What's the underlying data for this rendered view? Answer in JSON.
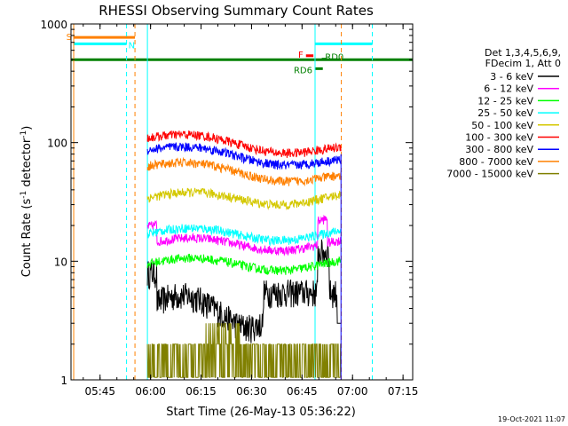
{
  "chart_data": {
    "type": "line",
    "title": "RHESSI Observing Summary Count Rates",
    "xlabel": "Start Time (26-May-13 05:36:22)",
    "ylabel_main": "Count Rate (s",
    "ylabel_sup1": "-1",
    "ylabel_mid": " detector",
    "ylabel_sup2": "-1",
    "ylabel_end": ")",
    "x_range_minutes": [
      0,
      101.5
    ],
    "x_ticks": [
      {
        "label": "05:45",
        "min": 8.6333
      },
      {
        "label": "06:00",
        "min": 23.6333
      },
      {
        "label": "06:15",
        "min": 38.6333
      },
      {
        "label": "06:30",
        "min": 53.6333
      },
      {
        "label": "06:45",
        "min": 68.6333
      },
      {
        "label": "07:00",
        "min": 83.6333
      },
      {
        "label": "07:15",
        "min": 98.6333
      }
    ],
    "y_scale": "log",
    "y_range": [
      1,
      1000
    ],
    "y_ticks": [
      {
        "label": "1",
        "value": 1
      },
      {
        "label": "10",
        "value": 10
      },
      {
        "label": "100",
        "value": 100
      },
      {
        "label": "1000",
        "value": 1000
      }
    ],
    "legend_header": [
      "Det 1,3,4,5,6,9,",
      "FDecim 1, Att 0"
    ],
    "data_window_minutes": [
      22.7,
      80.2
    ],
    "series": [
      {
        "name": "3 - 6 keV",
        "color": "#000000",
        "level": 4.8
      },
      {
        "name": "6 - 12 keV",
        "color": "#ff00ff",
        "level": 14
      },
      {
        "name": "12 - 25 keV",
        "color": "#00ff00",
        "level": 9.5
      },
      {
        "name": "25 - 50 keV",
        "color": "#00ffff",
        "level": 17
      },
      {
        "name": "50 - 100 keV",
        "color": "#d4c800",
        "level": 34
      },
      {
        "name": "100 - 300 keV",
        "color": "#ff0000",
        "level": 95
      },
      {
        "name": "300 - 800 keV",
        "color": "#0000ff",
        "level": 75
      },
      {
        "name": "800 - 7000 keV",
        "color": "#ff8000",
        "level": 55
      },
      {
        "name": "7000 - 15000 keV",
        "color": "#808000",
        "level": 2
      }
    ],
    "flags": [
      {
        "label": "S",
        "color": "#ff8000",
        "value": 770,
        "x_start": 0.8,
        "x_end": 19.0
      },
      {
        "label": "N",
        "color": "#00ffff",
        "value": 680,
        "x_start": 0.8,
        "x_end": 16.5
      },
      {
        "label": "",
        "color": "#00ffff",
        "value": 680,
        "x_start": 72.5,
        "x_end": 89.5
      },
      {
        "label": "F",
        "color": "#ff0000",
        "value": 540,
        "x_start": 69.8,
        "x_end": 72.0
      },
      {
        "label": "RD0",
        "color": "#008000",
        "value": 505,
        "x_start": 74.5,
        "x_end": 76.0
      },
      {
        "label": "RD6",
        "color": "#008000",
        "value": 420,
        "x_start": 72.5,
        "x_end": 74.8
      },
      {
        "label": "",
        "color": "#008000",
        "value": 500,
        "x_start": 0.0,
        "x_end": 101.5
      }
    ],
    "vlines": [
      {
        "min": 0.8,
        "color": "#ff8000",
        "style": "solid"
      },
      {
        "min": 16.5,
        "color": "#00ffff",
        "style": "dashed"
      },
      {
        "min": 19.0,
        "color": "#ff8000",
        "style": "dashed"
      },
      {
        "min": 22.7,
        "color": "#00ffff",
        "style": "solid"
      },
      {
        "min": 72.5,
        "color": "#00ffff",
        "style": "solid"
      },
      {
        "min": 80.3,
        "color": "#ff8000",
        "style": "dashed"
      },
      {
        "min": 89.5,
        "color": "#00ffff",
        "style": "dashed"
      }
    ],
    "grid": false,
    "legend_position": "right"
  },
  "footer": {
    "timestamp": "19-Oct-2021 11:07"
  }
}
